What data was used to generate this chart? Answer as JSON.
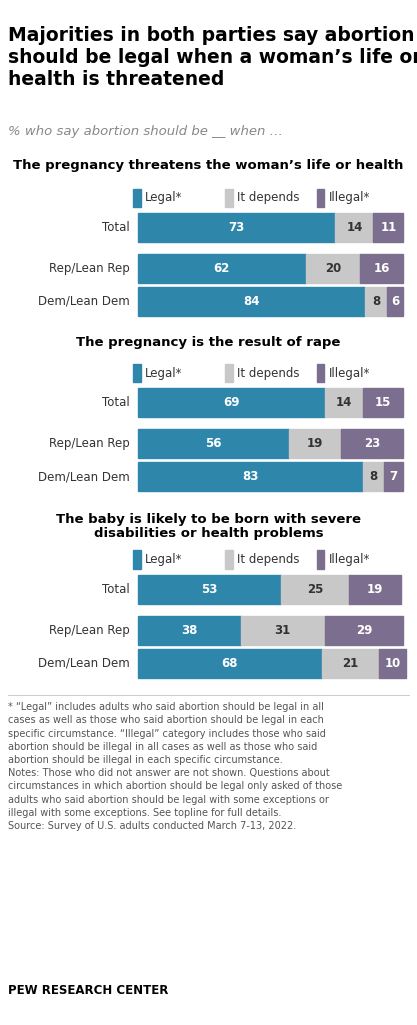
{
  "title": "Majorities in both parties say abortion\nshould be legal when a woman’s life or\nhealth is threatened",
  "subtitle": "% who say abortion should be __ when …",
  "sections": [
    {
      "heading": "The pregnancy threatens the woman’s life or health",
      "rows": [
        {
          "label": "Total",
          "legal": 73,
          "depends": 14,
          "illegal": 11
        },
        {
          "label": "Rep/Lean Rep",
          "legal": 62,
          "depends": 20,
          "illegal": 16
        },
        {
          "label": "Dem/Lean Dem",
          "legal": 84,
          "depends": 8,
          "illegal": 6
        }
      ]
    },
    {
      "heading": "The pregnancy is the result of rape",
      "rows": [
        {
          "label": "Total",
          "legal": 69,
          "depends": 14,
          "illegal": 15
        },
        {
          "label": "Rep/Lean Rep",
          "legal": 56,
          "depends": 19,
          "illegal": 23
        },
        {
          "label": "Dem/Lean Dem",
          "legal": 83,
          "depends": 8,
          "illegal": 7
        }
      ]
    },
    {
      "heading": "The baby is likely to be born with severe\ndisabilities or health problems",
      "rows": [
        {
          "label": "Total",
          "legal": 53,
          "depends": 25,
          "illegal": 19
        },
        {
          "label": "Rep/Lean Rep",
          "legal": 38,
          "depends": 31,
          "illegal": 29
        },
        {
          "label": "Dem/Lean Dem",
          "legal": 68,
          "depends": 21,
          "illegal": 10
        }
      ]
    }
  ],
  "colors": {
    "legal": "#2E86AB",
    "depends": "#C8C8C8",
    "illegal": "#7B6E8E"
  },
  "legend_labels": [
    "Legal*",
    "It depends",
    "Illegal*"
  ],
  "footnote": "* “Legal” includes adults who said abortion should be legal in all\ncases as well as those who said abortion should be legal in each\nspecific circumstance. “Illegal” category includes those who said\nabortion should be illegal in all cases as well as those who said\nabortion should be illegal in each specific circumstance.\nNotes: Those who did not answer are not shown. Questions about\ncircumstances in which abortion should be legal only asked of those\nadults who said abortion should be legal with some exceptions or\nillegal with some exceptions. See topline for full details.\nSource: Survey of U.S. adults conducted March 7-13, 2022.",
  "source_label": "PEW RESEARCH CENTER",
  "bg_color": "#FFFFFF",
  "label_fontsize": 8.5,
  "value_fontsize": 8.5,
  "heading_fontsize": 9.5,
  "legend_fontsize": 8.5,
  "title_fontsize": 13.5,
  "subtitle_fontsize": 9.5,
  "footnote_fontsize": 7.0,
  "source_fontsize": 8.5
}
